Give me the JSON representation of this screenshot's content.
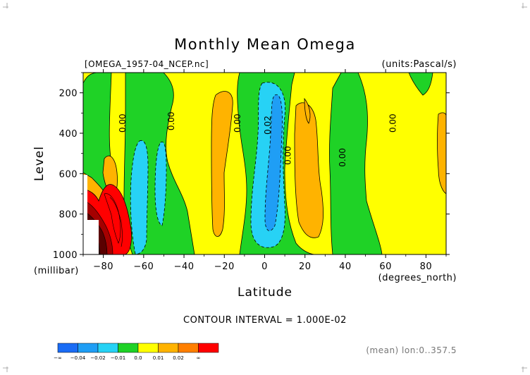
{
  "chart_data": {
    "type": "heatmap",
    "title": "Monthly Mean Omega",
    "file_label": "[OMEGA_1957-04_NCEP.nc]",
    "units_label": "(units:Pascal/s)",
    "xlabel": "Latitude",
    "x_unit_label": "(degrees_north)",
    "ylabel": "Level",
    "y_unit_label": "(millibar)",
    "xlim": [
      -90,
      90
    ],
    "ylim": [
      1000,
      100
    ],
    "x_ticks": [
      {
        "value": -80,
        "label": "-80"
      },
      {
        "value": -60,
        "label": "-60"
      },
      {
        "value": -40,
        "label": "-40"
      },
      {
        "value": -20,
        "label": "-20"
      },
      {
        "value": 0,
        "label": "0"
      },
      {
        "value": 20,
        "label": "20"
      },
      {
        "value": 40,
        "label": "40"
      },
      {
        "value": 60,
        "label": "60"
      },
      {
        "value": 80,
        "label": "80"
      }
    ],
    "y_ticks": [
      {
        "value": 200,
        "label": "200"
      },
      {
        "value": 400,
        "label": "400"
      },
      {
        "value": 600,
        "label": "600"
      },
      {
        "value": 800,
        "label": "800"
      },
      {
        "value": 1000,
        "label": "1000"
      }
    ],
    "contour_interval_text": "CONTOUR INTERVAL = 1.000E-02",
    "contour_labels": [
      {
        "lat": -69,
        "lev": 350,
        "text": "0.00"
      },
      {
        "lat": -45,
        "lev": 340,
        "text": "0.00"
      },
      {
        "lat": -12,
        "lev": 350,
        "text": "0.00"
      },
      {
        "lat": 3,
        "lev": 360,
        "text": "0.02"
      },
      {
        "lat": 13,
        "lev": 510,
        "text": "0.00"
      },
      {
        "lat": 40,
        "lev": 520,
        "text": "0.00"
      },
      {
        "lat": 65,
        "lev": 350,
        "text": "0.00"
      }
    ],
    "colorbar": {
      "labels": [
        "-∞",
        "-0.04",
        "-0.02",
        "-0.01",
        "0.0",
        "0.01",
        "0.02",
        "∞"
      ],
      "colors": [
        "#1a6cf5",
        "#1f9ef5",
        "#27d2f5",
        "#1fd226",
        "#ffff00",
        "#ffb300",
        "#ff7f00",
        "#ff0000"
      ]
    },
    "footnote": "(mean) lon:0..357.5"
  }
}
